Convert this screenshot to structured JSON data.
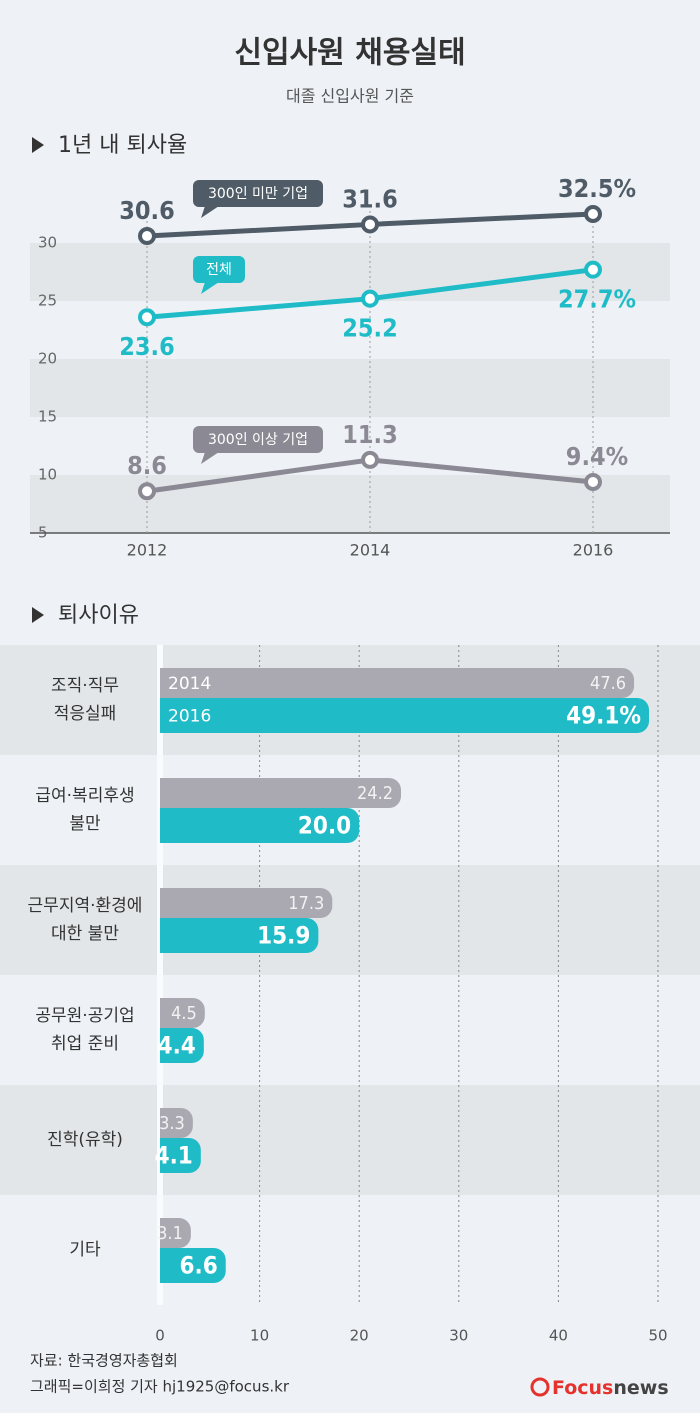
{
  "title": "신입사원 채용실태",
  "subtitle": "대졸 신입사원 기준",
  "chart_data": [
    {
      "type": "line",
      "title": "1년 내 퇴사율",
      "categories": [
        "2012",
        "2014",
        "2016"
      ],
      "series": [
        {
          "name": "300인 미만 기업",
          "color": "#4f5b66",
          "values": [
            30.6,
            31.6,
            32.5
          ],
          "value_labels": [
            "30.6",
            "31.6",
            "32.5%"
          ]
        },
        {
          "name": "전체",
          "color": "#1fbcc8",
          "values": [
            23.6,
            25.2,
            27.7
          ],
          "value_labels": [
            "23.6",
            "25.2",
            "27.7%"
          ]
        },
        {
          "name": "300인 이상 기업",
          "color": "#8b8a94",
          "values": [
            8.6,
            11.3,
            9.4
          ],
          "value_labels": [
            "8.6",
            "11.3",
            "9.4%"
          ]
        }
      ],
      "ylim": [
        5,
        34
      ],
      "yticks": [
        5,
        10,
        15,
        20,
        25,
        30
      ],
      "grid": "bands"
    },
    {
      "type": "bar",
      "orientation": "horizontal",
      "title": "퇴사이유",
      "categories": [
        "조직·직무\n적응실패",
        "급여·복리후생\n불만",
        "근무지역·환경에\n대한 불만",
        "공무원·공기업\n취업 준비",
        "진학(유학)",
        "기타"
      ],
      "series": [
        {
          "name": "2014",
          "color": "#aaa9b1",
          "values": [
            47.6,
            24.2,
            17.3,
            4.5,
            3.3,
            3.1
          ]
        },
        {
          "name": "2016",
          "color": "#1fbcc8",
          "values": [
            49.1,
            20.0,
            15.9,
            4.4,
            4.1,
            6.6
          ],
          "value_labels": [
            "49.1%",
            "20.0",
            "15.9",
            "4.4",
            "4.1",
            "6.6"
          ]
        }
      ],
      "xlim": [
        0,
        50
      ],
      "xticks": [
        0,
        10,
        20,
        30,
        40,
        50
      ],
      "grid": true
    }
  ],
  "footer": {
    "source": "자료: 한국경영자총협회",
    "credit": "그래픽=이희정 기자 hj1925@focus.kr",
    "logo_brand": "Focus",
    "logo_suffix": "news"
  }
}
